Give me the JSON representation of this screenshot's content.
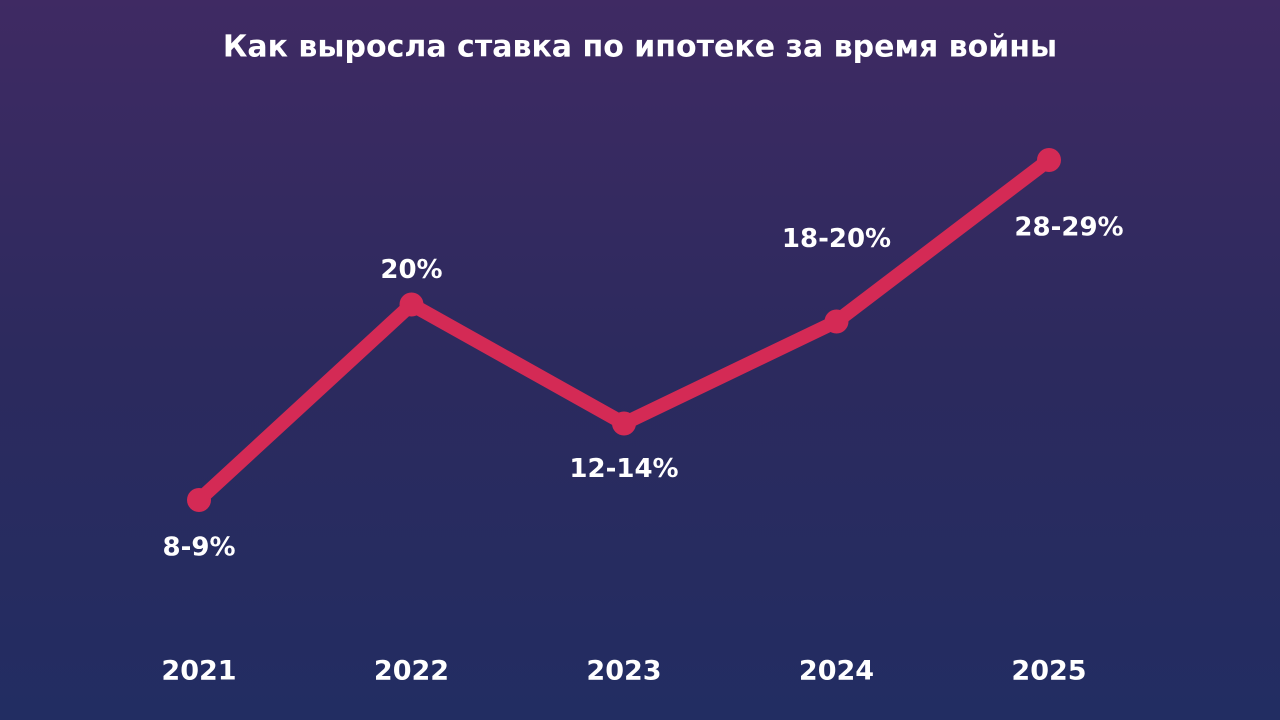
{
  "chart_data": {
    "type": "line",
    "title": "Как выросла ставка по ипотеке за время войны",
    "categories": [
      "2021",
      "2022",
      "2023",
      "2024",
      "2025"
    ],
    "series": [
      {
        "color": "#d42a55",
        "values": [
          8.5,
          20,
          13,
          19,
          28.5
        ],
        "value_labels": [
          "8-9%",
          "20%",
          "12-14%",
          "18-20%",
          "28-29%"
        ]
      }
    ]
  }
}
